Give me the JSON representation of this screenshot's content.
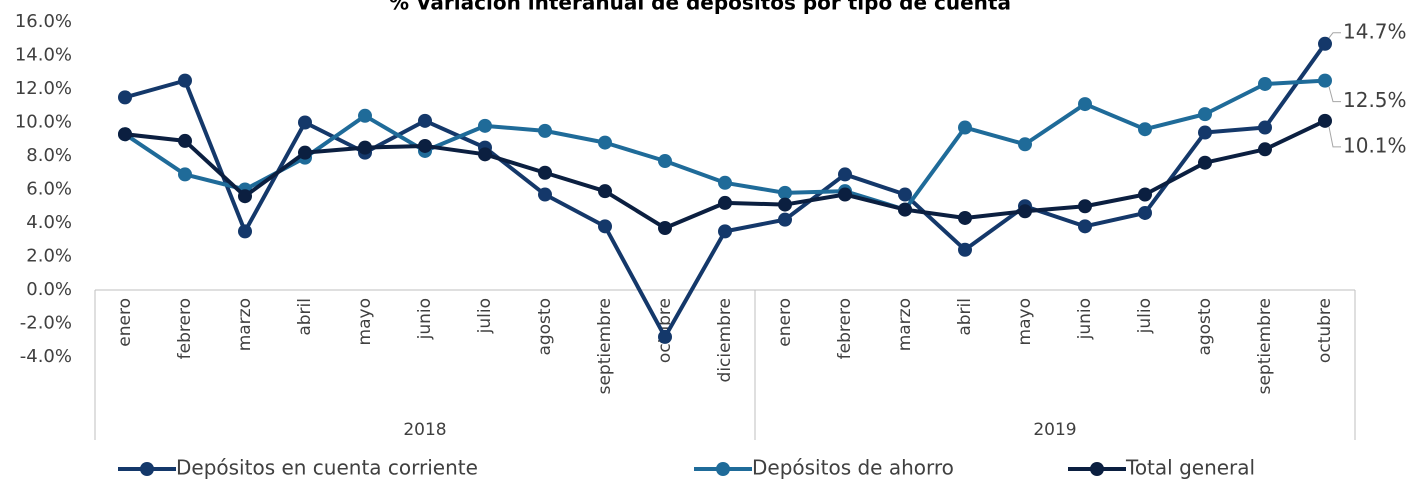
{
  "chart_data": {
    "type": "line",
    "title": "% Variación interanual de depósitos por tipo de cuenta",
    "groups": [
      {
        "label": "2018",
        "months": [
          "enero",
          "febrero",
          "marzo",
          "abril",
          "mayo",
          "junio",
          "julio",
          "agosto",
          "septiembre",
          "octubre",
          "diciembre"
        ]
      },
      {
        "label": "2019",
        "months": [
          "enero",
          "febrero",
          "marzo",
          "abril",
          "mayo",
          "junio",
          "julio",
          "agosto",
          "septiembre",
          "octubre"
        ]
      }
    ],
    "series": [
      {
        "name": "Depósitos en cuenta corriente",
        "color": "#14386a",
        "values": [
          11.5,
          12.5,
          3.5,
          10.0,
          8.2,
          10.1,
          8.5,
          5.7,
          3.8,
          -2.8,
          3.5,
          4.2,
          6.9,
          5.7,
          2.4,
          5.0,
          3.8,
          4.6,
          9.4,
          9.7,
          14.7
        ],
        "value_labels": [
          null,
          null,
          null,
          null,
          null,
          null,
          null,
          null,
          null,
          null,
          null,
          null,
          null,
          null,
          null,
          null,
          null,
          null,
          null,
          null,
          "14.7%"
        ]
      },
      {
        "name": "Depósitos de ahorro",
        "color": "#1f6b99",
        "values": [
          9.3,
          6.9,
          6.0,
          7.9,
          10.4,
          8.3,
          9.8,
          9.5,
          8.8,
          7.7,
          6.4,
          5.8,
          5.9,
          4.8,
          9.7,
          8.7,
          11.1,
          9.6,
          10.5,
          12.3,
          12.5
        ],
        "value_labels": [
          null,
          null,
          null,
          null,
          null,
          null,
          null,
          null,
          null,
          null,
          null,
          null,
          null,
          null,
          null,
          null,
          null,
          null,
          null,
          null,
          "12.5%"
        ]
      },
      {
        "name": "Total general",
        "color": "#0b1f40",
        "values": [
          9.3,
          8.9,
          5.6,
          8.2,
          8.5,
          8.6,
          8.1,
          7.0,
          5.9,
          3.7,
          5.2,
          5.1,
          5.7,
          4.8,
          4.3,
          4.7,
          5.0,
          5.7,
          7.6,
          8.4,
          10.1
        ],
        "value_labels": [
          null,
          null,
          null,
          null,
          null,
          null,
          null,
          null,
          null,
          null,
          null,
          null,
          null,
          null,
          null,
          null,
          null,
          null,
          null,
          null,
          "10.1%"
        ]
      }
    ],
    "ylim": [
      -4,
      16
    ],
    "yticks": [
      {
        "value": -4,
        "label": "-4.0%"
      },
      {
        "value": -2,
        "label": "-2.0%"
      },
      {
        "value": 0,
        "label": "0.0%"
      },
      {
        "value": 2,
        "label": "2.0%"
      },
      {
        "value": 4,
        "label": "4.0%"
      },
      {
        "value": 6,
        "label": "6.0%"
      },
      {
        "value": 8,
        "label": "8.0%"
      },
      {
        "value": 10,
        "label": "10.0%"
      },
      {
        "value": 12,
        "label": "12.0%"
      },
      {
        "value": 14,
        "label": "14.0%"
      },
      {
        "value": 16,
        "label": "16.0%"
      }
    ],
    "grid": false,
    "legend": "bottom"
  }
}
